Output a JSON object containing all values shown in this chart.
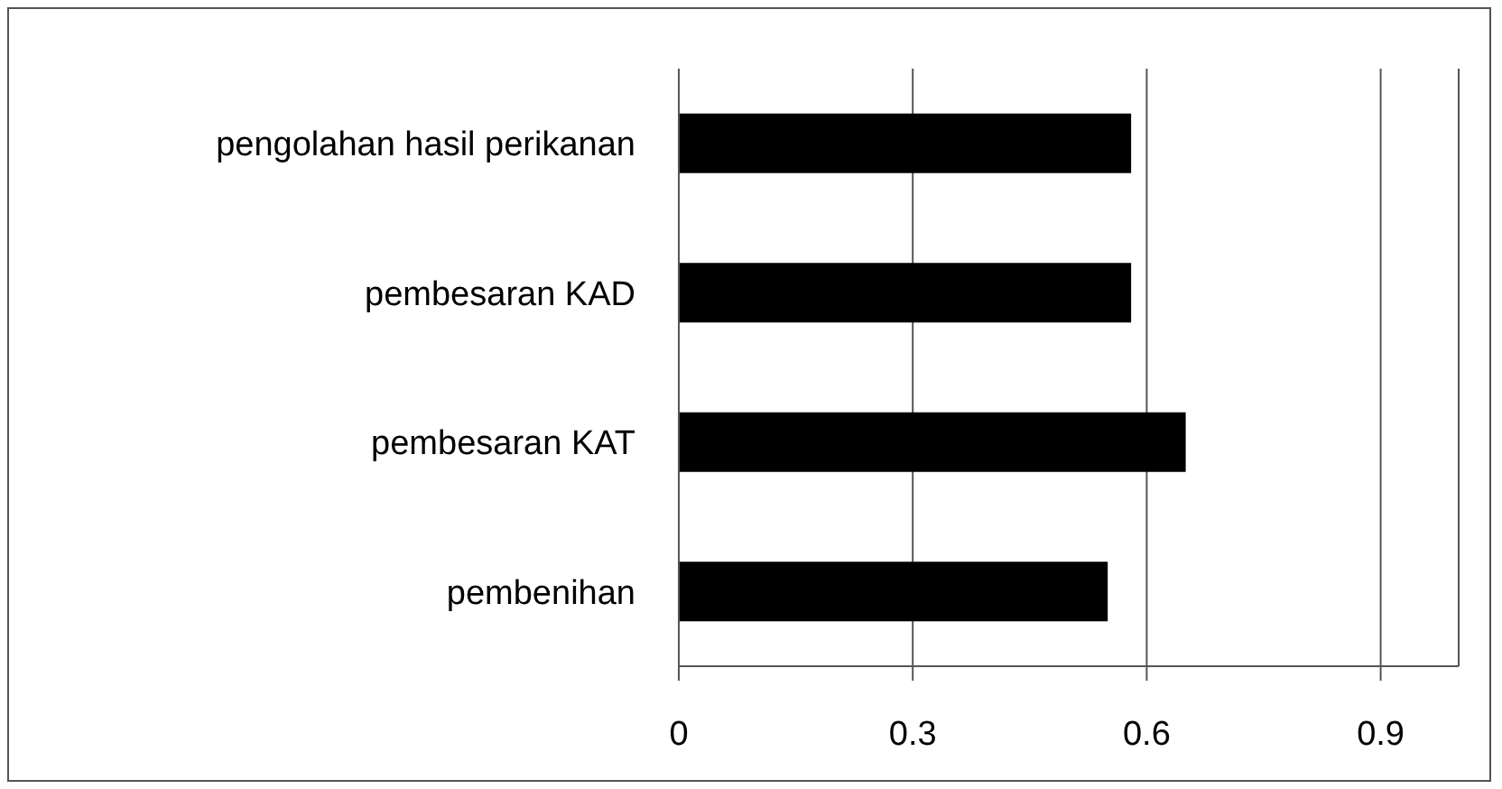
{
  "chart_data": {
    "type": "bar",
    "orientation": "horizontal",
    "categories": [
      "pengolahan hasil perikanan",
      "pembesaran KAD",
      "pembesaran KAT",
      "pembenihan"
    ],
    "values": [
      0.58,
      0.58,
      0.65,
      0.55
    ],
    "color": "#000000",
    "xlim": [
      0,
      1
    ],
    "xticks": [
      0,
      0.3,
      0.6,
      0.9
    ],
    "grid": "x"
  }
}
